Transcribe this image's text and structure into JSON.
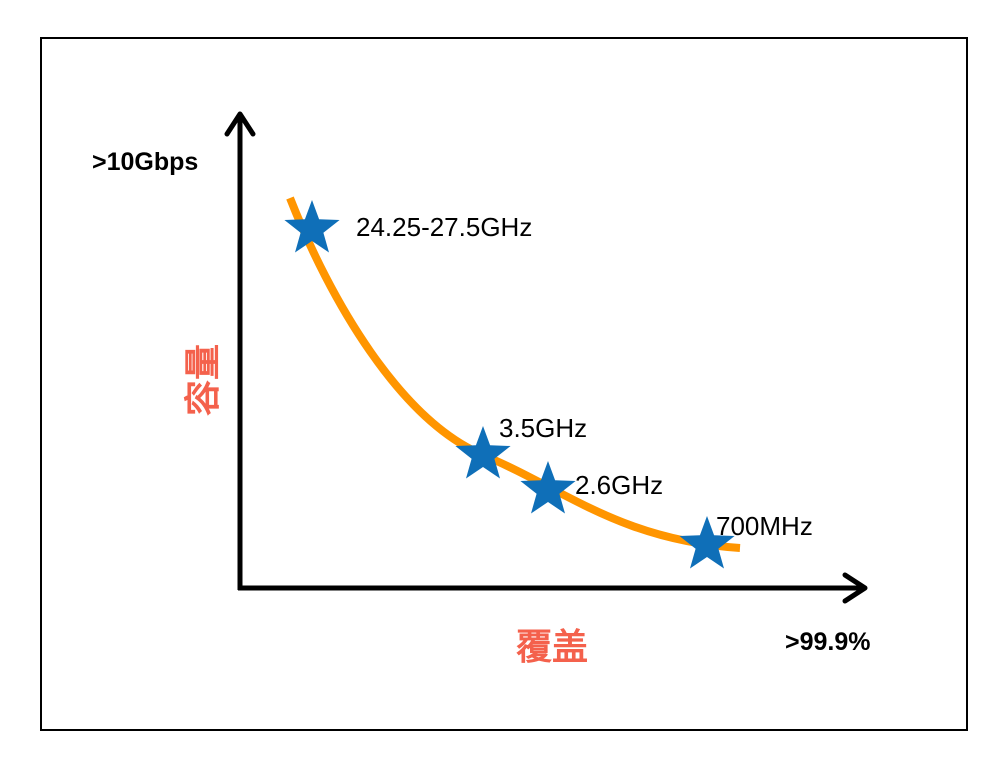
{
  "y_axis": {
    "label": "容量",
    "max_label": ">10Gbps"
  },
  "x_axis": {
    "label": "覆盖",
    "max_label": ">99.9%"
  },
  "points": [
    {
      "label": "24.25-27.5GHz"
    },
    {
      "label": "3.5GHz"
    },
    {
      "label": "2.6GHz"
    },
    {
      "label": "700MHz"
    }
  ],
  "colors": {
    "curve": "#ff9500",
    "star": "#0f6fb8",
    "axis_label": "#f4614c",
    "axes": "#000000"
  }
}
